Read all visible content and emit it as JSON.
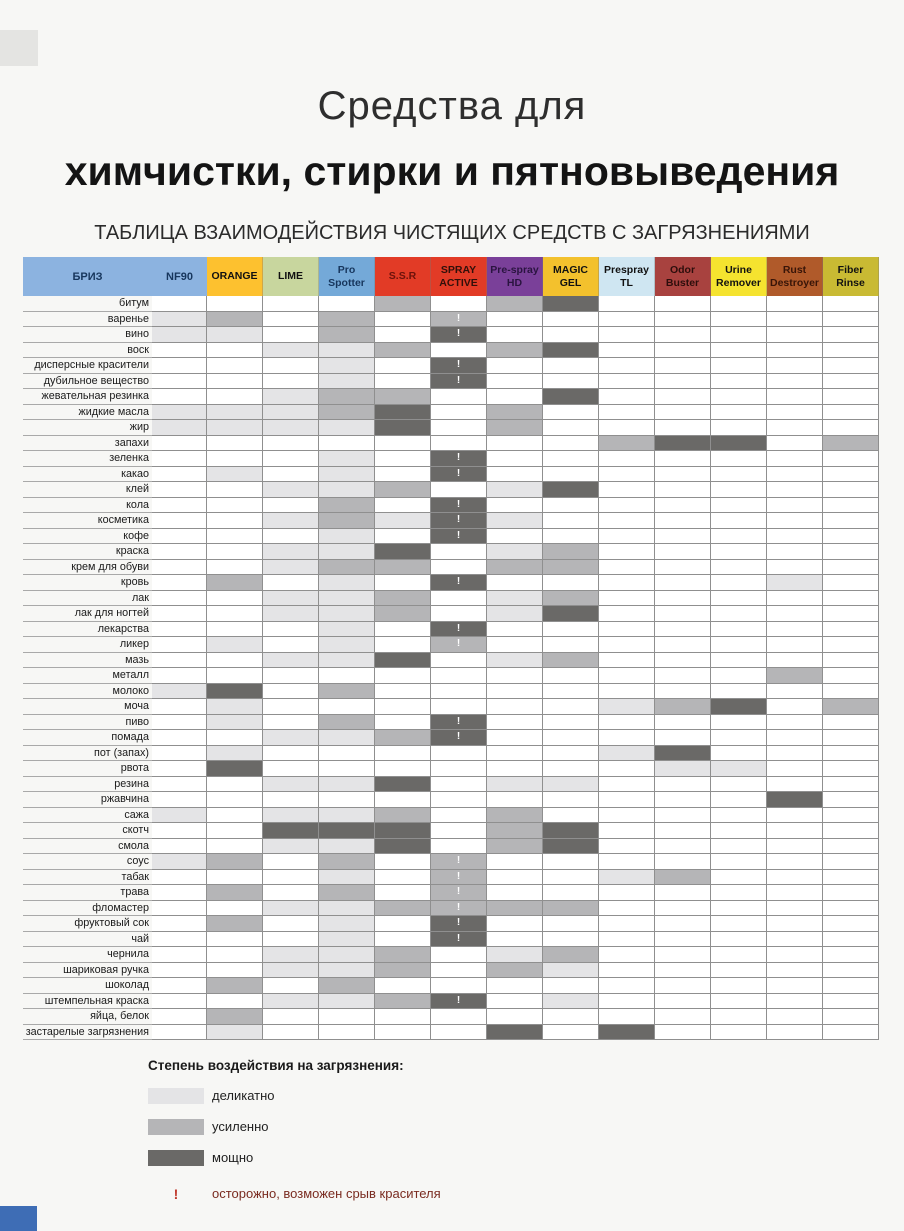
{
  "page": {
    "title_line1": "Средства для",
    "title_line2": "химчистки, стирки и пятновыведения",
    "subtitle": "ТАБЛИЦА ВЗАИМОДЕЙСТВИЯ ЧИСТЯЩИХ СРЕДСТВ С ЗАГРЯЗНЕНИЯМИ"
  },
  "chart_data": {
    "type": "heatmap",
    "brand_header": {
      "label": "БРИЗ",
      "bg": "#8cb3e0",
      "fg": "#17365d"
    },
    "columns": [
      {
        "label": "NF90",
        "bg": "#8cb3e0",
        "fg": "#17365d"
      },
      {
        "label": "ORANGE",
        "bg": "#fdc12f",
        "fg": "#111111"
      },
      {
        "label": "LIME",
        "bg": "#c8d69e",
        "fg": "#111111"
      },
      {
        "label": "Pro Spotter",
        "bg": "#74a9d8",
        "fg": "#17365d"
      },
      {
        "label": "S.S.R",
        "bg": "#e23b26",
        "fg": "#6d120b"
      },
      {
        "label": "SPRAY ACTIVE",
        "bg": "#e23b26",
        "fg": "#31100a"
      },
      {
        "label": "Pre-spray HD",
        "bg": "#7a4099",
        "fg": "#2a1440"
      },
      {
        "label": "MAGIC GEL",
        "bg": "#f3c12d",
        "fg": "#111111"
      },
      {
        "label": "Prespray TL",
        "bg": "#cfe6f2",
        "fg": "#111111"
      },
      {
        "label": "Odor Buster",
        "bg": "#a8423f",
        "fg": "#2d0e0c"
      },
      {
        "label": "Urine Remover",
        "bg": "#f5e32f",
        "fg": "#111111"
      },
      {
        "label": "Rust Destroyer",
        "bg": "#b05a2a",
        "fg": "#391508"
      },
      {
        "label": "Fiber Rinse",
        "bg": "#c9ba33",
        "fg": "#111111"
      }
    ],
    "level_colors": {
      "1": "#e4e4e6",
      "2": "#b5b5b7",
      "3": "#6a6967"
    },
    "level_names": {
      "1": "деликатно",
      "2": "усиленно",
      "3": "мощно"
    },
    "warning_symbol": "!",
    "rows": [
      {
        "label": "битум",
        "cells": [
          "0",
          "0",
          "0",
          "0",
          "2",
          "0",
          "2",
          "3",
          "0",
          "0",
          "0",
          "0",
          "0"
        ]
      },
      {
        "label": "варенье",
        "cells": [
          "1",
          "2",
          "0",
          "2",
          "0",
          "2!",
          "0",
          "0",
          "0",
          "0",
          "0",
          "0",
          "0"
        ]
      },
      {
        "label": "вино",
        "cells": [
          "1",
          "1",
          "0",
          "2",
          "0",
          "3!",
          "0",
          "0",
          "0",
          "0",
          "0",
          "0",
          "0"
        ]
      },
      {
        "label": "воск",
        "cells": [
          "0",
          "0",
          "1",
          "1",
          "2",
          "0",
          "2",
          "3",
          "0",
          "0",
          "0",
          "0",
          "0"
        ]
      },
      {
        "label": "дисперсные красители",
        "cells": [
          "0",
          "0",
          "0",
          "1",
          "0",
          "3!",
          "0",
          "0",
          "0",
          "0",
          "0",
          "0",
          "0"
        ]
      },
      {
        "label": "дубильное вещество",
        "cells": [
          "0",
          "0",
          "0",
          "1",
          "0",
          "3!",
          "0",
          "0",
          "0",
          "0",
          "0",
          "0",
          "0"
        ]
      },
      {
        "label": "жевательная резинка",
        "cells": [
          "0",
          "0",
          "1",
          "2",
          "2",
          "0",
          "0",
          "3",
          "0",
          "0",
          "0",
          "0",
          "0"
        ]
      },
      {
        "label": "жидкие масла",
        "cells": [
          "1",
          "1",
          "1",
          "2",
          "3",
          "0",
          "2",
          "0",
          "0",
          "0",
          "0",
          "0",
          "0"
        ]
      },
      {
        "label": "жир",
        "cells": [
          "1",
          "1",
          "1",
          "1",
          "3",
          "0",
          "2",
          "0",
          "0",
          "0",
          "0",
          "0",
          "0"
        ]
      },
      {
        "label": "запахи",
        "cells": [
          "0",
          "0",
          "0",
          "0",
          "0",
          "0",
          "0",
          "0",
          "2",
          "3",
          "3",
          "0",
          "2"
        ]
      },
      {
        "label": "зеленка",
        "cells": [
          "0",
          "0",
          "0",
          "1",
          "0",
          "3!",
          "0",
          "0",
          "0",
          "0",
          "0",
          "0",
          "0"
        ]
      },
      {
        "label": "какао",
        "cells": [
          "0",
          "1",
          "0",
          "1",
          "0",
          "3!",
          "0",
          "0",
          "0",
          "0",
          "0",
          "0",
          "0"
        ]
      },
      {
        "label": "клей",
        "cells": [
          "0",
          "0",
          "1",
          "1",
          "2",
          "0",
          "1",
          "3",
          "0",
          "0",
          "0",
          "0",
          "0"
        ]
      },
      {
        "label": "кола",
        "cells": [
          "0",
          "0",
          "0",
          "2",
          "0",
          "3!",
          "0",
          "0",
          "0",
          "0",
          "0",
          "0",
          "0"
        ]
      },
      {
        "label": "косметика",
        "cells": [
          "0",
          "0",
          "1",
          "2",
          "1",
          "3!",
          "1",
          "0",
          "0",
          "0",
          "0",
          "0",
          "0"
        ]
      },
      {
        "label": "кофе",
        "cells": [
          "0",
          "0",
          "0",
          "1",
          "0",
          "3!",
          "0",
          "0",
          "0",
          "0",
          "0",
          "0",
          "0"
        ]
      },
      {
        "label": "краска",
        "cells": [
          "0",
          "0",
          "1",
          "1",
          "3",
          "0",
          "1",
          "2",
          "0",
          "0",
          "0",
          "0",
          "0"
        ]
      },
      {
        "label": "крем для обуви",
        "cells": [
          "0",
          "0",
          "1",
          "2",
          "2",
          "0",
          "2",
          "2",
          "0",
          "0",
          "0",
          "0",
          "0"
        ]
      },
      {
        "label": "кровь",
        "cells": [
          "0",
          "2",
          "0",
          "1",
          "0",
          "3!",
          "0",
          "0",
          "0",
          "0",
          "0",
          "1",
          "0"
        ]
      },
      {
        "label": "лак",
        "cells": [
          "0",
          "0",
          "1",
          "1",
          "2",
          "0",
          "1",
          "2",
          "0",
          "0",
          "0",
          "0",
          "0"
        ]
      },
      {
        "label": "лак для ногтей",
        "cells": [
          "0",
          "0",
          "1",
          "1",
          "2",
          "0",
          "1",
          "3",
          "0",
          "0",
          "0",
          "0",
          "0"
        ]
      },
      {
        "label": "лекарства",
        "cells": [
          "0",
          "0",
          "0",
          "1",
          "0",
          "3!",
          "0",
          "0",
          "0",
          "0",
          "0",
          "0",
          "0"
        ]
      },
      {
        "label": "ликер",
        "cells": [
          "0",
          "1",
          "0",
          "1",
          "0",
          "2!",
          "0",
          "0",
          "0",
          "0",
          "0",
          "0",
          "0"
        ]
      },
      {
        "label": "мазь",
        "cells": [
          "0",
          "0",
          "1",
          "1",
          "3",
          "0",
          "1",
          "2",
          "0",
          "0",
          "0",
          "0",
          "0"
        ]
      },
      {
        "label": "металл",
        "cells": [
          "0",
          "0",
          "0",
          "0",
          "0",
          "0",
          "0",
          "0",
          "0",
          "0",
          "0",
          "2",
          "0"
        ]
      },
      {
        "label": "молоко",
        "cells": [
          "1",
          "3",
          "0",
          "2",
          "0",
          "0",
          "0",
          "0",
          "0",
          "0",
          "0",
          "0",
          "0"
        ]
      },
      {
        "label": "моча",
        "cells": [
          "0",
          "1",
          "0",
          "0",
          "0",
          "0",
          "0",
          "0",
          "1",
          "2",
          "3",
          "0",
          "2"
        ]
      },
      {
        "label": "пиво",
        "cells": [
          "0",
          "1",
          "0",
          "2",
          "0",
          "3!",
          "0",
          "0",
          "0",
          "0",
          "0",
          "0",
          "0"
        ]
      },
      {
        "label": "помада",
        "cells": [
          "0",
          "0",
          "1",
          "1",
          "2",
          "3!",
          "0",
          "0",
          "0",
          "0",
          "0",
          "0",
          "0"
        ]
      },
      {
        "label": "пот (запах)",
        "cells": [
          "0",
          "1",
          "0",
          "0",
          "0",
          "0",
          "0",
          "0",
          "1",
          "3",
          "0",
          "0",
          "0"
        ]
      },
      {
        "label": "рвота",
        "cells": [
          "0",
          "3",
          "0",
          "0",
          "0",
          "0",
          "0",
          "0",
          "0",
          "1",
          "1",
          "0",
          "0"
        ]
      },
      {
        "label": "резина",
        "cells": [
          "0",
          "0",
          "1",
          "1",
          "3",
          "0",
          "1",
          "1",
          "0",
          "0",
          "0",
          "0",
          "0"
        ]
      },
      {
        "label": "ржавчина",
        "cells": [
          "0",
          "0",
          "0",
          "0",
          "0",
          "0",
          "0",
          "0",
          "0",
          "0",
          "0",
          "3",
          "0"
        ]
      },
      {
        "label": "сажа",
        "cells": [
          "1",
          "0",
          "1",
          "1",
          "2",
          "0",
          "2",
          "0",
          "0",
          "0",
          "0",
          "0",
          "0"
        ]
      },
      {
        "label": "скотч",
        "cells": [
          "0",
          "0",
          "3",
          "3",
          "3",
          "0",
          "2",
          "3",
          "0",
          "0",
          "0",
          "0",
          "0"
        ]
      },
      {
        "label": "смола",
        "cells": [
          "0",
          "0",
          "1",
          "1",
          "3",
          "0",
          "2",
          "3",
          "0",
          "0",
          "0",
          "0",
          "0"
        ]
      },
      {
        "label": "соус",
        "cells": [
          "1",
          "2",
          "0",
          "2",
          "0",
          "2!",
          "0",
          "0",
          "0",
          "0",
          "0",
          "0",
          "0"
        ]
      },
      {
        "label": "табак",
        "cells": [
          "0",
          "0",
          "0",
          "1",
          "0",
          "2!",
          "0",
          "0",
          "1",
          "2",
          "0",
          "0",
          "0"
        ]
      },
      {
        "label": "трава",
        "cells": [
          "0",
          "2",
          "0",
          "2",
          "0",
          "2!",
          "0",
          "0",
          "0",
          "0",
          "0",
          "0",
          "0"
        ]
      },
      {
        "label": "фломастер",
        "cells": [
          "0",
          "0",
          "1",
          "1",
          "2",
          "2!",
          "2",
          "2",
          "0",
          "0",
          "0",
          "0",
          "0"
        ]
      },
      {
        "label": "фруктовый сок",
        "cells": [
          "0",
          "2",
          "0",
          "1",
          "0",
          "3!",
          "0",
          "0",
          "0",
          "0",
          "0",
          "0",
          "0"
        ]
      },
      {
        "label": "чай",
        "cells": [
          "0",
          "0",
          "0",
          "1",
          "0",
          "3!",
          "0",
          "0",
          "0",
          "0",
          "0",
          "0",
          "0"
        ]
      },
      {
        "label": "чернила",
        "cells": [
          "0",
          "0",
          "1",
          "1",
          "2",
          "0",
          "1",
          "2",
          "0",
          "0",
          "0",
          "0",
          "0"
        ]
      },
      {
        "label": "шариковая ручка",
        "cells": [
          "0",
          "0",
          "1",
          "1",
          "2",
          "0",
          "2",
          "1",
          "0",
          "0",
          "0",
          "0",
          "0"
        ]
      },
      {
        "label": "шоколад",
        "cells": [
          "0",
          "2",
          "0",
          "2",
          "0",
          "0",
          "0",
          "0",
          "0",
          "0",
          "0",
          "0",
          "0"
        ]
      },
      {
        "label": "штемпельная краска",
        "cells": [
          "0",
          "0",
          "1",
          "1",
          "2",
          "3!",
          "0",
          "1",
          "0",
          "0",
          "0",
          "0",
          "0"
        ]
      },
      {
        "label": "яйца, белок",
        "cells": [
          "0",
          "2",
          "0",
          "0",
          "0",
          "0",
          "0",
          "0",
          "0",
          "0",
          "0",
          "0",
          "0"
        ]
      },
      {
        "label": "застарелые загрязнения",
        "cells": [
          "0",
          "1",
          "0",
          "0",
          "0",
          "0",
          "3",
          "0",
          "3",
          "0",
          "0",
          "0",
          "0"
        ]
      }
    ]
  },
  "legend": {
    "title": "Степень воздействия на загрязнения:",
    "items": [
      {
        "level": "1",
        "label": "деликатно"
      },
      {
        "level": "2",
        "label": "усиленно"
      },
      {
        "level": "3",
        "label": "мощно"
      }
    ],
    "warning": {
      "symbol": "!",
      "label": "осторожно, возможен срыв красителя",
      "color": "#c0392b"
    }
  }
}
